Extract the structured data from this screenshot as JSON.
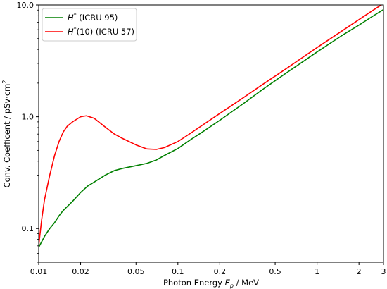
{
  "chart_data": {
    "type": "line",
    "x_scale": "log",
    "y_scale": "log",
    "xlabel_main": "Photon Energy ",
    "xlabel_var": "E",
    "xlabel_sub": "p",
    "xlabel_unit": " / MeV",
    "ylabel_main": "Conv. Coefficent / pSv",
    "ylabel_dot": "·",
    "ylabel_unit": "cm",
    "ylabel_sup": "2",
    "xlim": [
      0.01,
      3
    ],
    "ylim": [
      0.05,
      10
    ],
    "x_ticks": [
      0.01,
      0.02,
      0.05,
      0.1,
      0.2,
      0.5,
      1,
      2,
      3
    ],
    "x_tick_labels": [
      "0.01",
      "0.02",
      "0.05",
      "0.1",
      "0.2",
      "0.5",
      "1",
      "2",
      "3"
    ],
    "y_ticks": [
      0.1,
      1,
      10
    ],
    "y_tick_labels": [
      "0.1",
      "1.0",
      "10.0"
    ],
    "legend_position": "top-left",
    "series": [
      {
        "legend_var": "H",
        "legend_sup": "*",
        "legend_rest": " (ICRU 95)",
        "color": "#008000",
        "points": [
          [
            0.01,
            0.068
          ],
          [
            0.011,
            0.085
          ],
          [
            0.012,
            0.1
          ],
          [
            0.013,
            0.113
          ],
          [
            0.014,
            0.13
          ],
          [
            0.015,
            0.145
          ],
          [
            0.0175,
            0.175
          ],
          [
            0.02,
            0.21
          ],
          [
            0.0225,
            0.24
          ],
          [
            0.025,
            0.26
          ],
          [
            0.03,
            0.3
          ],
          [
            0.035,
            0.33
          ],
          [
            0.04,
            0.345
          ],
          [
            0.05,
            0.365
          ],
          [
            0.06,
            0.383
          ],
          [
            0.07,
            0.41
          ],
          [
            0.08,
            0.45
          ],
          [
            0.1,
            0.52
          ],
          [
            0.125,
            0.63
          ],
          [
            0.15,
            0.73
          ],
          [
            0.2,
            0.93
          ],
          [
            0.3,
            1.33
          ],
          [
            0.4,
            1.73
          ],
          [
            0.5,
            2.1
          ],
          [
            0.6,
            2.46
          ],
          [
            0.8,
            3.14
          ],
          [
            1.0,
            3.8
          ],
          [
            1.5,
            5.3
          ],
          [
            2.0,
            6.6
          ],
          [
            2.5,
            7.9
          ],
          [
            3.0,
            9.1
          ]
        ]
      },
      {
        "legend_var": "H",
        "legend_sup": "*",
        "legend_rest": "(10) (ICRU 57)",
        "color": "#ff0000",
        "points": [
          [
            0.01,
            0.07
          ],
          [
            0.0105,
            0.12
          ],
          [
            0.011,
            0.18
          ],
          [
            0.012,
            0.3
          ],
          [
            0.013,
            0.45
          ],
          [
            0.014,
            0.6
          ],
          [
            0.015,
            0.73
          ],
          [
            0.016,
            0.82
          ],
          [
            0.0175,
            0.9
          ],
          [
            0.02,
            1.0
          ],
          [
            0.022,
            1.02
          ],
          [
            0.025,
            0.97
          ],
          [
            0.03,
            0.81
          ],
          [
            0.035,
            0.7
          ],
          [
            0.04,
            0.64
          ],
          [
            0.05,
            0.56
          ],
          [
            0.06,
            0.515
          ],
          [
            0.07,
            0.51
          ],
          [
            0.08,
            0.53
          ],
          [
            0.1,
            0.6
          ],
          [
            0.125,
            0.72
          ],
          [
            0.15,
            0.84
          ],
          [
            0.2,
            1.07
          ],
          [
            0.3,
            1.5
          ],
          [
            0.4,
            1.92
          ],
          [
            0.5,
            2.31
          ],
          [
            0.6,
            2.69
          ],
          [
            0.8,
            3.44
          ],
          [
            1.0,
            4.16
          ],
          [
            1.5,
            5.82
          ],
          [
            2.0,
            7.39
          ],
          [
            2.5,
            8.9
          ],
          [
            3.0,
            10.3
          ]
        ]
      }
    ]
  }
}
